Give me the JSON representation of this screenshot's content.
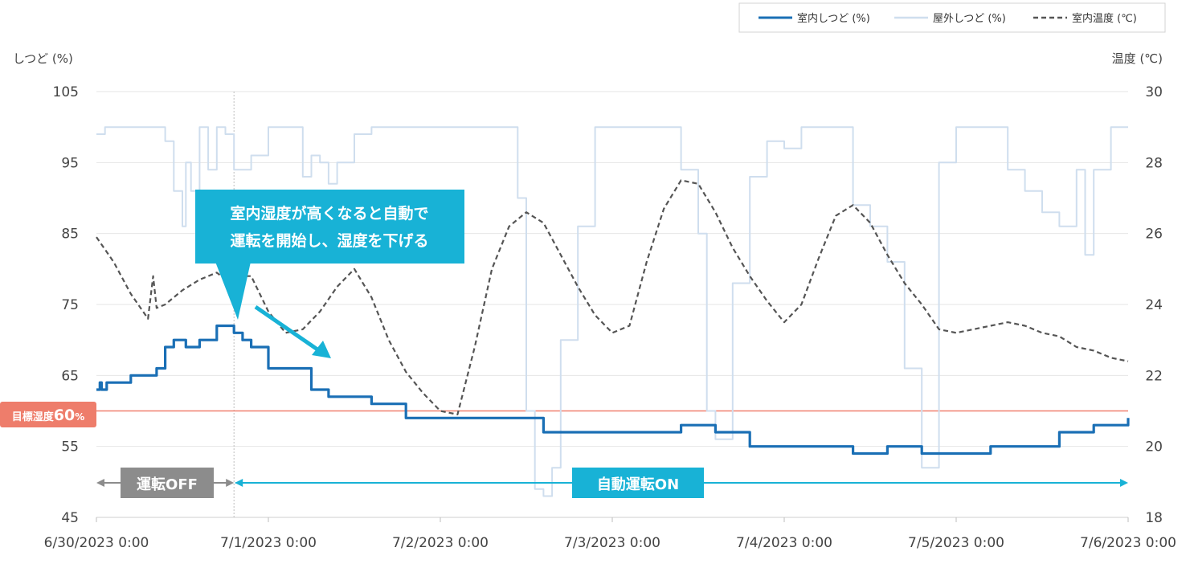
{
  "chart_data": {
    "type": "line",
    "y_left_label": "しつど (%)",
    "y_right_label": "温度 (℃)",
    "y_left_range": [
      45,
      105
    ],
    "y_right_range": [
      18,
      30
    ],
    "y_left_ticks": [
      105,
      95,
      85,
      75,
      65,
      55,
      45
    ],
    "y_right_ticks": [
      30,
      28,
      26,
      24,
      22,
      20,
      18
    ],
    "x_tick_labels": [
      "6/30/2023 0:00",
      "7/1/2023 0:00",
      "7/2/2023 0:00",
      "7/3/2023 0:00",
      "7/4/2023 0:00",
      "7/5/2023 0:00",
      "7/6/2023 0:00"
    ],
    "x_range_days": [
      0,
      6
    ],
    "legend": {
      "placement": "top-right",
      "items": [
        "室内しつど (%)",
        "屋外しつど (%)",
        "室内温度 (℃)"
      ]
    },
    "colors": {
      "indoor_humidity": "#1a6fb5",
      "outdoor_humidity": "#cfdeee",
      "indoor_temp": "#555555",
      "target_line": "#f0806f",
      "target_box": "#ee7d6b",
      "off_band": "#8c8c8c",
      "on_band": "#18b2d6",
      "callout": "#18b2d6",
      "grid": "#e6e6e6"
    },
    "target": {
      "label_main": "目標湿度",
      "label_value": "60",
      "label_unit": "%",
      "value": 60
    },
    "annotations": {
      "callout_line1": "室内湿度が高くなると自動で",
      "callout_line2": "運転を開始し、湿度を下げる",
      "off_label": "運転OFF",
      "on_label": "自動運転ON",
      "switch_day": 0.8
    },
    "series": [
      {
        "name": "室内しつど (%)",
        "axis": "left",
        "x": [
          0,
          0.02,
          0.03,
          0.06,
          0.12,
          0.2,
          0.35,
          0.4,
          0.45,
          0.52,
          0.6,
          0.7,
          0.8,
          0.85,
          0.9,
          1.0,
          1.15,
          1.25,
          1.35,
          1.45,
          1.6,
          1.8,
          2.0,
          2.3,
          2.5,
          2.6,
          3.0,
          3.4,
          3.6,
          3.8,
          4.0,
          4.2,
          4.4,
          4.6,
          4.8,
          5.0,
          5.2,
          5.4,
          5.6,
          5.8,
          6.0
        ],
        "y": [
          63,
          64,
          63,
          64,
          64,
          65,
          66,
          69,
          70,
          69,
          70,
          72,
          71,
          70,
          69,
          66,
          66,
          63,
          62,
          62,
          61,
          59,
          59,
          59,
          59,
          57,
          57,
          58,
          57,
          55,
          55,
          55,
          54,
          55,
          54,
          54,
          55,
          55,
          57,
          58,
          59
        ]
      },
      {
        "name": "屋外しつど (%)",
        "axis": "left",
        "x": [
          0,
          0.05,
          0.3,
          0.4,
          0.45,
          0.5,
          0.52,
          0.55,
          0.6,
          0.65,
          0.7,
          0.75,
          0.8,
          0.85,
          0.9,
          1.0,
          1.05,
          1.1,
          1.2,
          1.25,
          1.3,
          1.35,
          1.4,
          1.5,
          1.6,
          1.8,
          2.0,
          2.25,
          2.35,
          2.45,
          2.5,
          2.55,
          2.6,
          2.65,
          2.7,
          2.8,
          2.9,
          3.0,
          3.3,
          3.4,
          3.5,
          3.55,
          3.6,
          3.7,
          3.8,
          3.9,
          4.0,
          4.1,
          4.2,
          4.3,
          4.4,
          4.5,
          4.6,
          4.7,
          4.8,
          4.9,
          5.0,
          5.1,
          5.2,
          5.3,
          5.4,
          5.5,
          5.6,
          5.7,
          5.75,
          5.8,
          5.9,
          6.0
        ],
        "y": [
          99,
          100,
          100,
          98,
          91,
          86,
          95,
          91,
          100,
          94,
          100,
          99,
          94,
          94,
          96,
          100,
          100,
          100,
          93,
          96,
          95,
          92,
          95,
          99,
          100,
          100,
          100,
          100,
          100,
          90,
          60,
          49,
          48,
          52,
          70,
          86,
          100,
          100,
          100,
          94,
          85,
          60,
          56,
          78,
          93,
          98,
          97,
          100,
          100,
          100,
          89,
          86,
          81,
          66,
          52,
          95,
          100,
          100,
          100,
          94,
          91,
          88,
          86,
          94,
          82,
          94,
          100,
          100
        ]
      },
      {
        "name": "室内温度 (℃)",
        "axis": "right",
        "x": [
          0,
          0.1,
          0.2,
          0.3,
          0.33,
          0.35,
          0.4,
          0.5,
          0.6,
          0.7,
          0.8,
          0.85,
          0.9,
          1.0,
          1.1,
          1.2,
          1.3,
          1.4,
          1.5,
          1.6,
          1.7,
          1.8,
          1.9,
          2.0,
          2.1,
          2.2,
          2.3,
          2.4,
          2.5,
          2.6,
          2.7,
          2.8,
          2.9,
          3.0,
          3.1,
          3.2,
          3.3,
          3.4,
          3.5,
          3.6,
          3.7,
          3.8,
          3.9,
          4.0,
          4.1,
          4.2,
          4.3,
          4.4,
          4.5,
          4.6,
          4.7,
          4.8,
          4.9,
          5.0,
          5.1,
          5.2,
          5.3,
          5.4,
          5.5,
          5.6,
          5.7,
          5.8,
          5.9,
          6.0
        ],
        "y": [
          25.9,
          25.2,
          24.3,
          23.6,
          24.8,
          23.9,
          24.0,
          24.4,
          24.7,
          24.9,
          24.5,
          24.8,
          24.8,
          23.8,
          23.2,
          23.3,
          23.8,
          24.5,
          25.0,
          24.2,
          23.0,
          22.1,
          21.5,
          21.0,
          20.9,
          22.8,
          25.0,
          26.2,
          26.6,
          26.3,
          25.4,
          24.5,
          23.7,
          23.2,
          23.4,
          25.2,
          26.7,
          27.5,
          27.4,
          26.6,
          25.6,
          24.8,
          24.1,
          23.5,
          24.0,
          25.3,
          26.5,
          26.8,
          26.3,
          25.4,
          24.6,
          24.0,
          23.3,
          23.2,
          23.3,
          23.4,
          23.5,
          23.4,
          23.2,
          23.1,
          22.8,
          22.7,
          22.5,
          22.4
        ]
      }
    ]
  }
}
